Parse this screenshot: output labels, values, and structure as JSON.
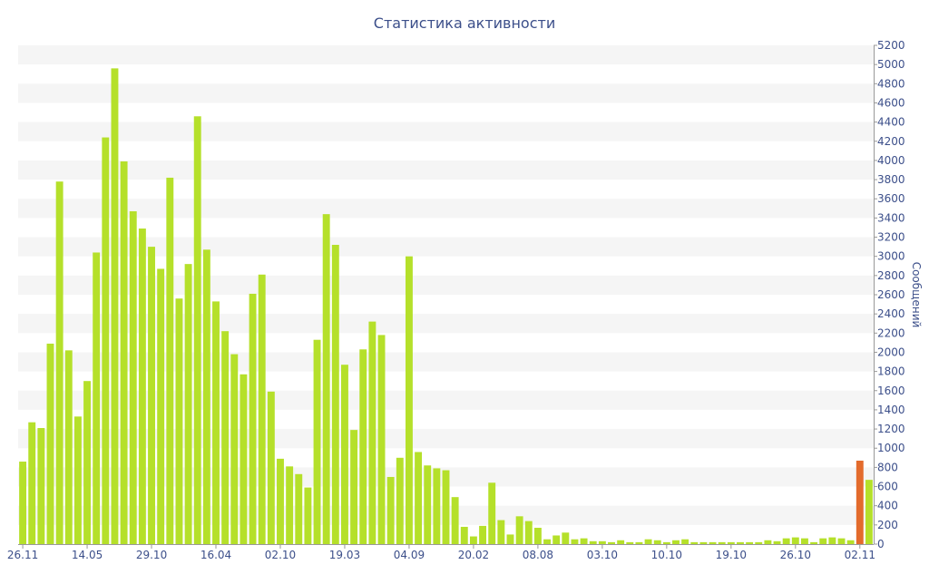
{
  "chart_data": {
    "type": "bar",
    "title": "Статистика активности",
    "ylabel": "Сообщений",
    "xlabel": "",
    "ylim": [
      0,
      5200
    ],
    "y_ticks": [
      0,
      200,
      400,
      600,
      800,
      1000,
      1200,
      1400,
      1600,
      1800,
      2000,
      2200,
      2400,
      2600,
      2800,
      3000,
      3200,
      3400,
      3600,
      3800,
      4000,
      4200,
      4400,
      4600,
      4800,
      5000,
      5200
    ],
    "y_axis_position": "right",
    "grid": "alternating horizontal bands",
    "legend": "none",
    "x_tick_labels": [
      {
        "index": 0,
        "label": "26.11"
      },
      {
        "index": 7,
        "label": "14.05"
      },
      {
        "index": 14,
        "label": "29.10"
      },
      {
        "index": 21,
        "label": "16.04"
      },
      {
        "index": 28,
        "label": "02.10"
      },
      {
        "index": 35,
        "label": "19.03"
      },
      {
        "index": 42,
        "label": "04.09"
      },
      {
        "index": 49,
        "label": "20.02"
      },
      {
        "index": 56,
        "label": "08.08"
      },
      {
        "index": 63,
        "label": "03.10"
      },
      {
        "index": 70,
        "label": "10.10"
      },
      {
        "index": 77,
        "label": "19.10"
      },
      {
        "index": 84,
        "label": "26.10"
      },
      {
        "index": 91,
        "label": "02.11"
      }
    ],
    "values": [
      860,
      1270,
      1210,
      2090,
      3780,
      2020,
      1330,
      1700,
      3040,
      4240,
      4960,
      3990,
      3470,
      3290,
      3100,
      2870,
      3820,
      2560,
      2920,
      4460,
      3070,
      2530,
      2220,
      1980,
      1770,
      2610,
      2810,
      1590,
      890,
      810,
      730,
      590,
      2130,
      3440,
      3120,
      1870,
      1190,
      2030,
      2320,
      2180,
      700,
      900,
      3000,
      960,
      820,
      790,
      770,
      490,
      180,
      80,
      190,
      640,
      250,
      100,
      290,
      240,
      170,
      50,
      90,
      120,
      50,
      60,
      30,
      30,
      20,
      40,
      20,
      20,
      50,
      40,
      20,
      40,
      50,
      20,
      20,
      20,
      20,
      20,
      20,
      20,
      20,
      40,
      30,
      60,
      70,
      60,
      20,
      60,
      70,
      60,
      40,
      870,
      670
    ],
    "colors": {
      "bar": "#b5e02a",
      "bar_highlight": "#e36b2c",
      "text": "#3c4f8a",
      "band": "#f5f5f5",
      "axis": "#999999"
    },
    "highlight_index": 91
  }
}
